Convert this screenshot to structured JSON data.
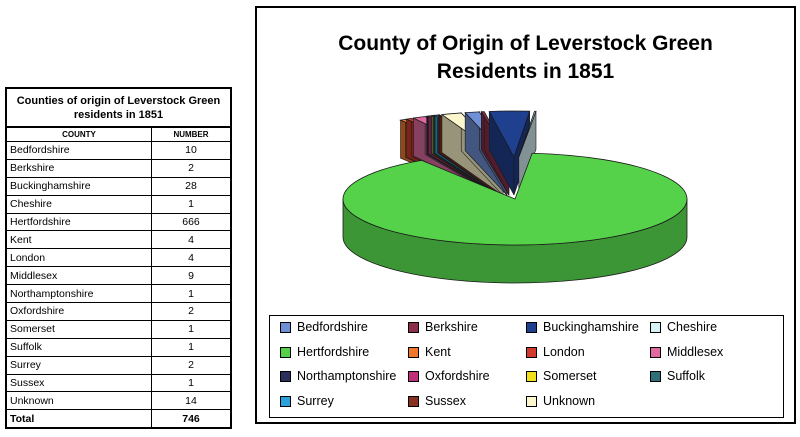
{
  "table": {
    "title": "Counties of origin of Leverstock Green residents in 1851",
    "headers": [
      "COUNTY",
      "NUMBER"
    ],
    "rows": [
      {
        "county": "Bedfordshire",
        "number": "10"
      },
      {
        "county": "Berkshire",
        "number": "2"
      },
      {
        "county": "Buckinghamshire",
        "number": "28"
      },
      {
        "county": "Cheshire",
        "number": "1"
      },
      {
        "county": "Hertfordshire",
        "number": "666"
      },
      {
        "county": "Kent",
        "number": "4"
      },
      {
        "county": "London",
        "number": "4"
      },
      {
        "county": "Middlesex",
        "number": "9"
      },
      {
        "county": "Northamptonshire",
        "number": "1"
      },
      {
        "county": "Oxfordshire",
        "number": "2"
      },
      {
        "county": "Somerset",
        "number": "1"
      },
      {
        "county": "Suffolk",
        "number": "1"
      },
      {
        "county": "Surrey",
        "number": "2"
      },
      {
        "county": "Sussex",
        "number": "1"
      },
      {
        "county": "Unknown",
        "number": "14"
      }
    ],
    "total": {
      "label": "Total",
      "number": "746"
    }
  },
  "chart_data": {
    "type": "pie",
    "title": "County of Origin of Leverstock Green Residents in 1851",
    "legend_position": "bottom",
    "slices": [
      {
        "label": "Bedfordshire",
        "value": 10,
        "color": "#6f8fd6"
      },
      {
        "label": "Berkshire",
        "value": 2,
        "color": "#8b2f4a"
      },
      {
        "label": "Buckinghamshire",
        "value": 28,
        "color": "#1f3f8f"
      },
      {
        "label": "Cheshire",
        "value": 1,
        "color": "#d8f3f6"
      },
      {
        "label": "Hertfordshire",
        "value": 666,
        "color": "#55d14a"
      },
      {
        "label": "Kent",
        "value": 4,
        "color": "#f0782c"
      },
      {
        "label": "London",
        "value": 4,
        "color": "#d03a2c"
      },
      {
        "label": "Middlesex",
        "value": 9,
        "color": "#e06aa0"
      },
      {
        "label": "Northamptonshire",
        "value": 1,
        "color": "#2a2f5c"
      },
      {
        "label": "Oxfordshire",
        "value": 2,
        "color": "#c0307a"
      },
      {
        "label": "Somerset",
        "value": 1,
        "color": "#f2e01c"
      },
      {
        "label": "Suffolk",
        "value": 1,
        "color": "#2f6f78"
      },
      {
        "label": "Surrey",
        "value": 2,
        "color": "#2aa0dc"
      },
      {
        "label": "Sussex",
        "value": 1,
        "color": "#8a3020"
      },
      {
        "label": "Unknown",
        "value": 14,
        "color": "#fbf6cc"
      }
    ]
  }
}
